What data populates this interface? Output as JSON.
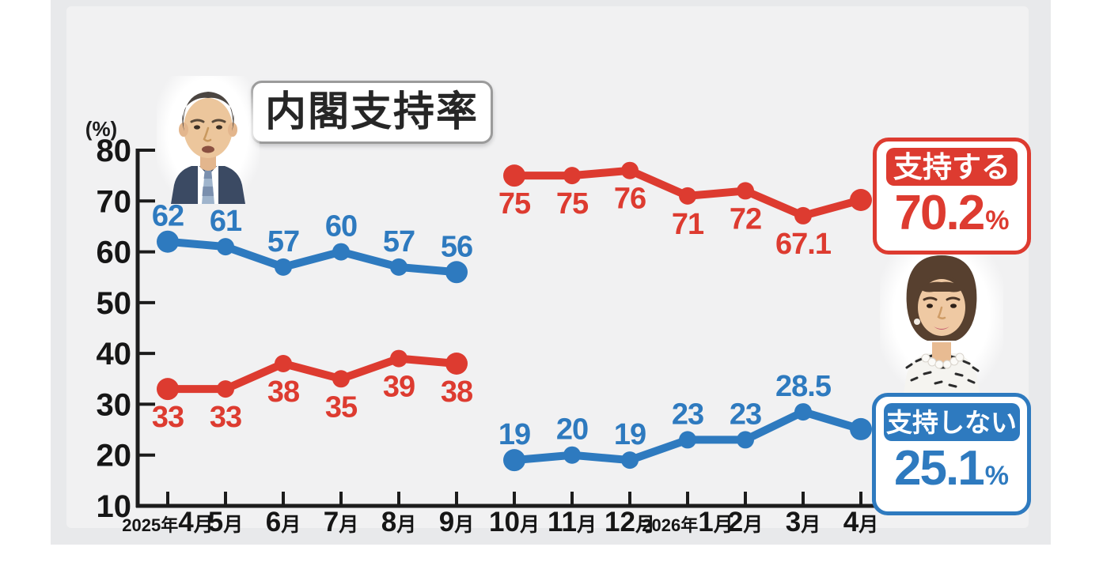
{
  "title": "内閣支持率",
  "y_unit": "(%)",
  "badges": {
    "approve": {
      "label": "支持する",
      "value": "70.2",
      "unit": "%"
    },
    "disapprove": {
      "label": "支持しない",
      "value": "25.1",
      "unit": "%"
    }
  },
  "colors": {
    "approve": "#dd3b30",
    "disapprove": "#2e7abf",
    "axis": "#1c1c1c",
    "panel_bg": "#e8e9eb",
    "chart_bg": "#f1f1f2"
  },
  "chart_data": {
    "type": "line",
    "title": "内閣支持率",
    "ylabel": "(%)",
    "ylim": [
      10,
      80
    ],
    "yticks": [
      80,
      70,
      60,
      50,
      40,
      30,
      20,
      10
    ],
    "categories": [
      "2025年4月",
      "5月",
      "6月",
      "7月",
      "8月",
      "9月",
      "10月",
      "11月",
      "12月",
      "2026年1月",
      "2月",
      "3月",
      "4月"
    ],
    "grid": false,
    "legend_position": "right",
    "series": [
      {
        "name": "支持しない",
        "months": "2025年4月〜9月",
        "color": "#2e7abf",
        "start_index": 0,
        "values": [
          62,
          61,
          57,
          60,
          57,
          56
        ],
        "labels": "above",
        "last_label_in_badge": false
      },
      {
        "name": "支持する",
        "months": "2025年4月〜9月",
        "color": "#dd3b30",
        "start_index": 0,
        "values": [
          33,
          33,
          38,
          35,
          39,
          38
        ],
        "labels": "below",
        "last_label_in_badge": false
      },
      {
        "name": "支持する",
        "months": "2025年10月〜2026年4月",
        "color": "#dd3b30",
        "start_index": 6,
        "values": [
          75,
          75,
          76,
          71,
          72,
          67.1,
          70.2
        ],
        "labels": "below",
        "last_label_in_badge": true
      },
      {
        "name": "支持しない",
        "months": "2025年10月〜2026年4月",
        "color": "#2e7abf",
        "start_index": 6,
        "values": [
          19,
          20,
          19,
          23,
          23,
          28.5,
          25.1
        ],
        "labels": "above",
        "last_label_in_badge": true
      }
    ]
  }
}
